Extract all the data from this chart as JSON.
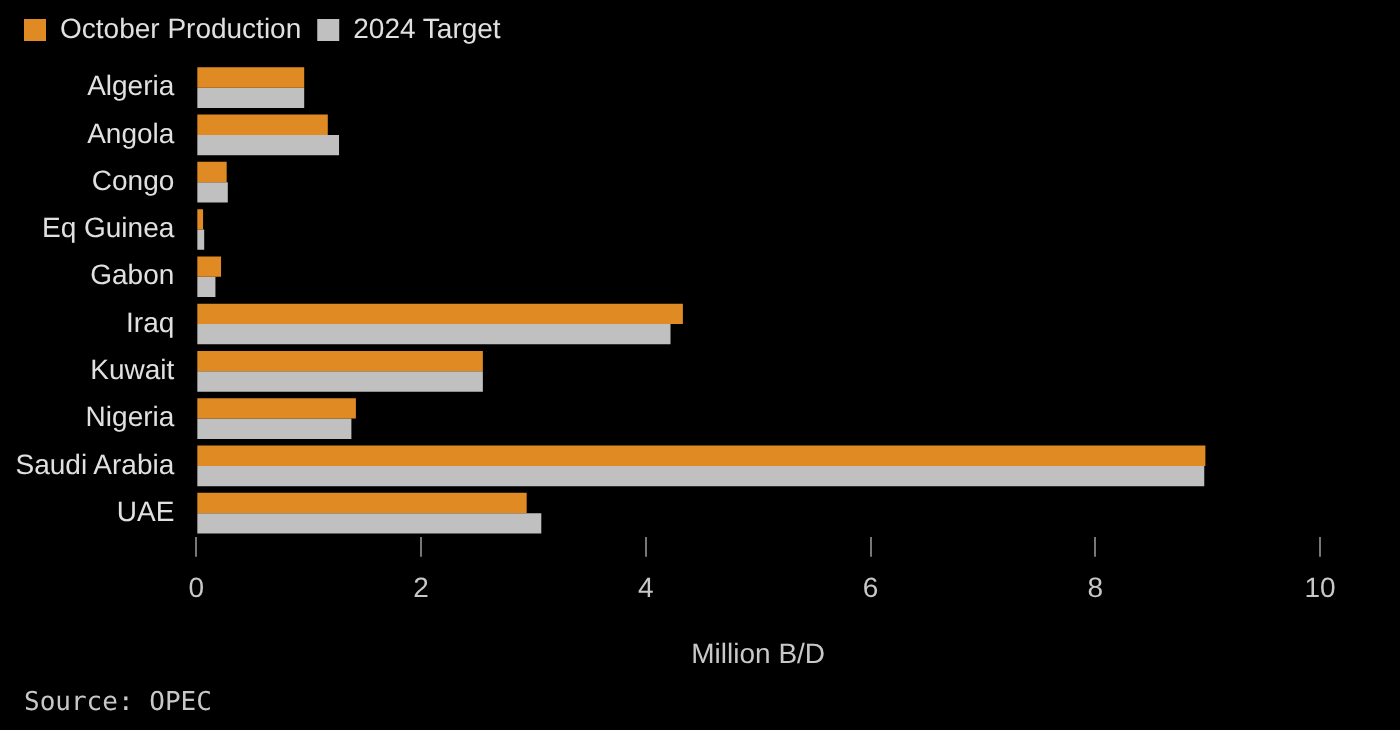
{
  "chart_data": {
    "type": "bar",
    "orientation": "horizontal",
    "xlabel": "Million B/D",
    "categories": [
      "Algeria",
      "Angola",
      "Congo",
      "Eq Guinea",
      "Gabon",
      "Iraq",
      "Kuwait",
      "Nigeria",
      "Saudi Arabia",
      "UAE"
    ],
    "series": [
      {
        "name": "October Production",
        "color": "#e08a24",
        "values": [
          0.96,
          1.17,
          0.27,
          0.06,
          0.22,
          4.33,
          2.55,
          1.42,
          8.98,
          2.94
        ]
      },
      {
        "name": "2024 Target",
        "color": "#c0c0c0",
        "values": [
          0.96,
          1.27,
          0.28,
          0.07,
          0.17,
          4.22,
          2.55,
          1.38,
          8.97,
          3.07
        ]
      }
    ],
    "xlim": [
      0,
      10
    ],
    "xticks": [
      0,
      2,
      4,
      6,
      8,
      10
    ],
    "legend": "top left",
    "annotations": [
      "Source: OPEC"
    ]
  }
}
